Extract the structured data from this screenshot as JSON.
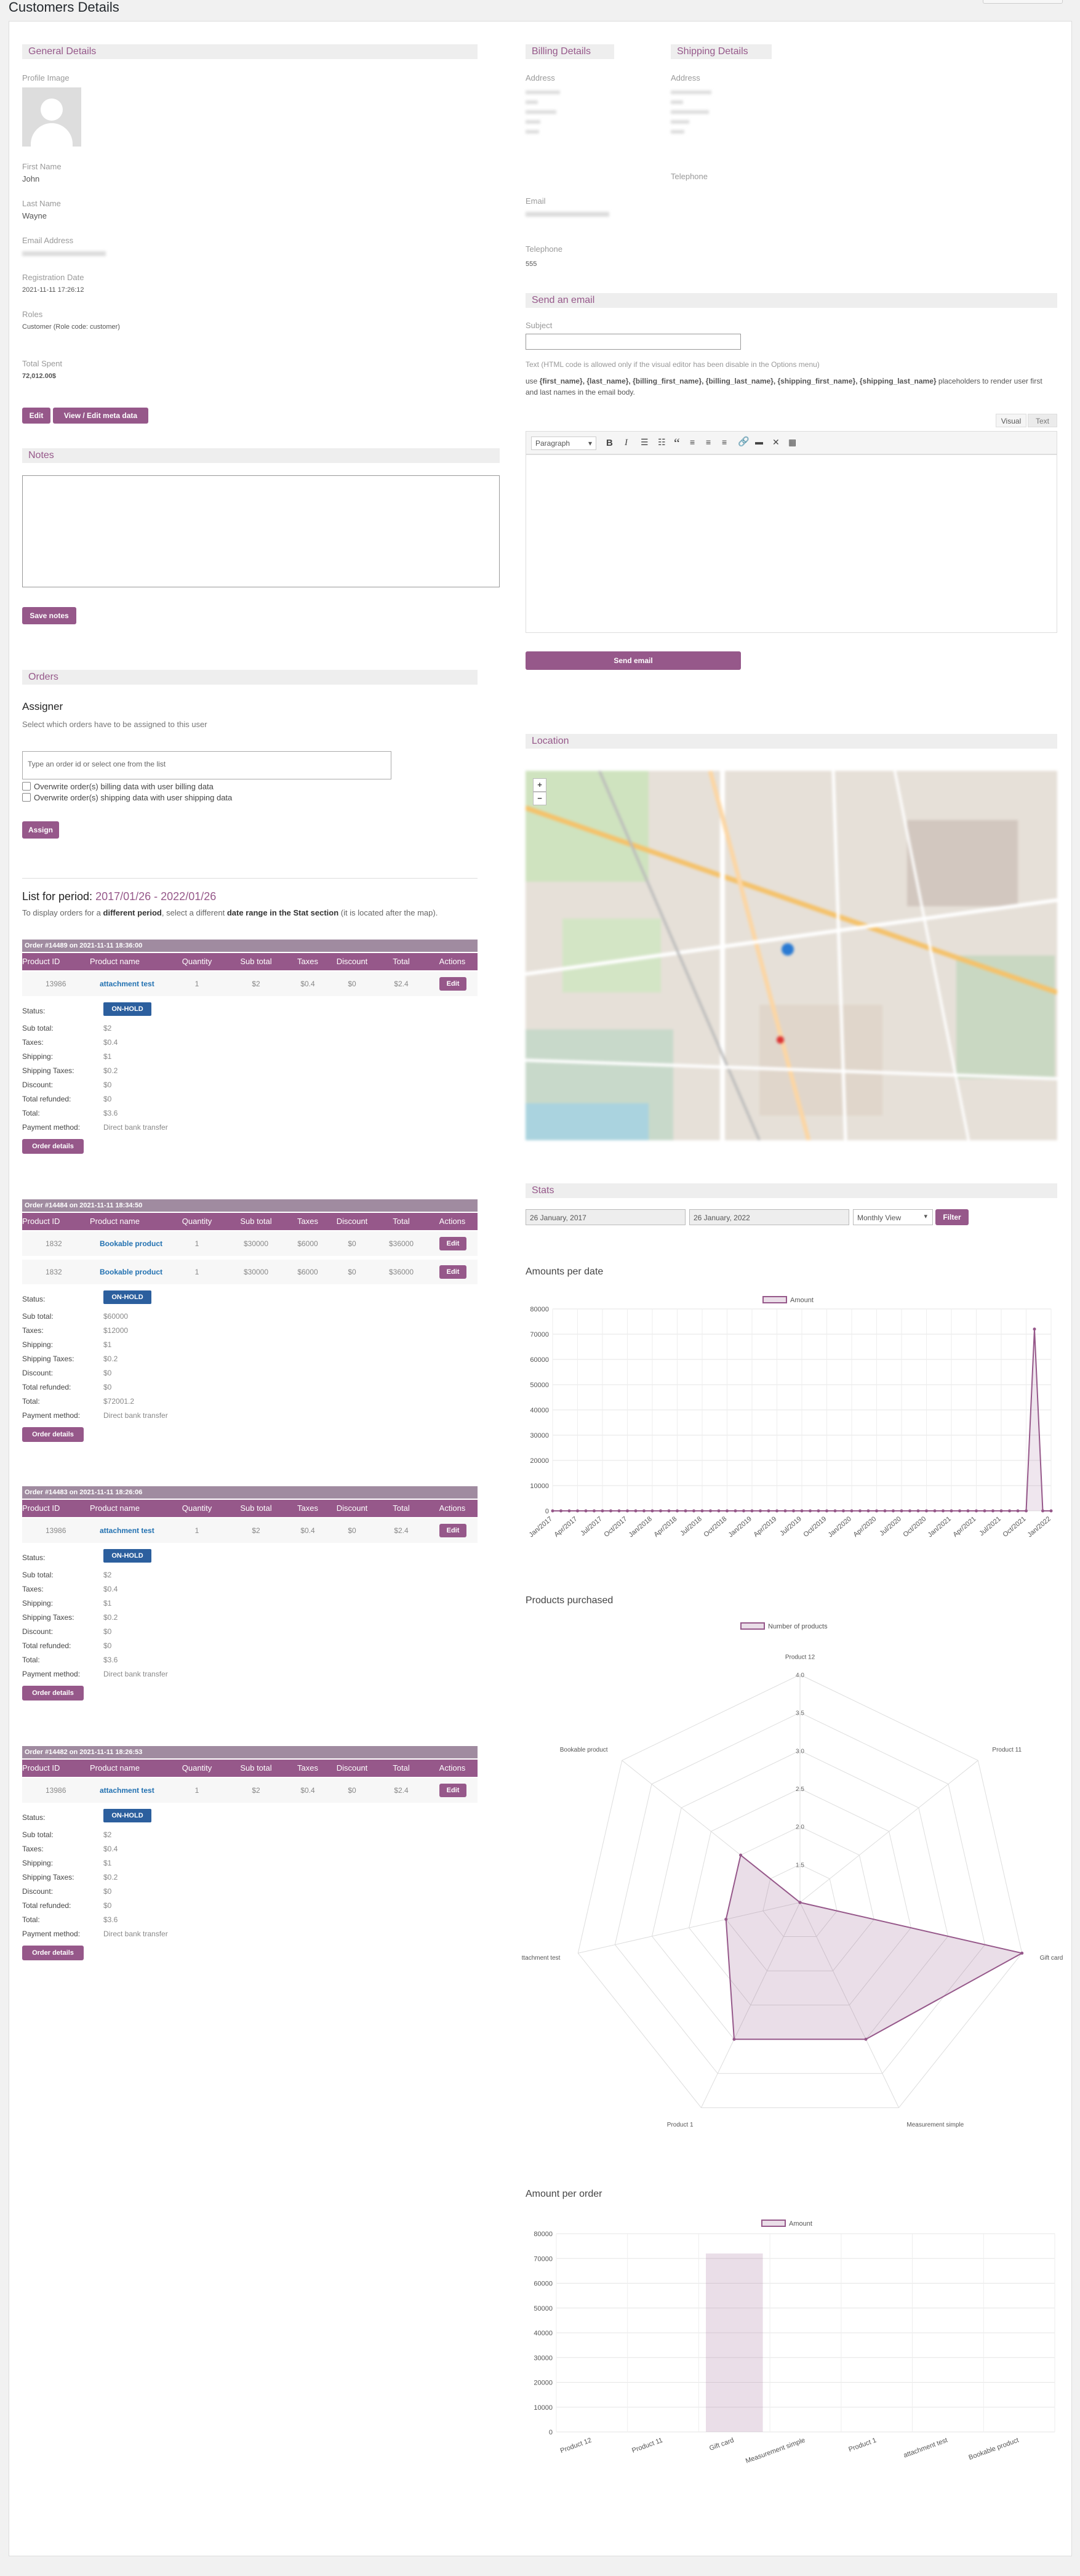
{
  "page_title": "Customers Details",
  "general": {
    "header": "General Details",
    "profile_image_label": "Profile Image",
    "first_name_label": "First Name",
    "first_name": "John",
    "last_name_label": "Last Name",
    "last_name": "Wayne",
    "email_label": "Email Address",
    "reg_date_label": "Registration Date",
    "reg_date": "2021-11-11 17:26:12",
    "roles_label": "Roles",
    "roles": "Customer (Role code: customer)",
    "total_spent_label": "Total Spent",
    "total_spent": "72,012.00$",
    "edit_btn": "Edit",
    "meta_btn": "View / Edit meta data"
  },
  "notes": {
    "header": "Notes",
    "save_btn": "Save notes"
  },
  "billing": {
    "header": "Billing Details",
    "address_label": "Address",
    "email_label": "Email",
    "telephone_label": "Telephone",
    "telephone": "555"
  },
  "shipping": {
    "header": "Shipping Details",
    "address_label": "Address",
    "telephone_label": "Telephone"
  },
  "send_email": {
    "header": "Send an email",
    "subject_label": "Subject",
    "note": "Text (HTML code is allowed only if the visual editor has been disable in the Options menu)",
    "placeholders_pre": "use ",
    "placeholders": "{first_name}, {last_name}, {billing_first_name}, {billing_last_name}, {shipping_first_name}, {shipping_last_name}",
    "placeholders_post": " placeholders to render user first and last names in the email body.",
    "tab_visual": "Visual",
    "tab_text": "Text",
    "format": "Paragraph",
    "send_btn": "Send email"
  },
  "orders": {
    "header": "Orders",
    "assigner_title": "Assigner",
    "assigner_desc": "Select which orders have to be assigned to this user",
    "input_placeholder": "Type an order id or select one from the list",
    "cb1": "Overwrite order(s) billing data with user billing data",
    "cb2": "Overwrite order(s) shipping data with user shipping data",
    "assign_btn": "Assign",
    "period_label": "List for period: ",
    "period_value": "2017/01/26 - 2022/01/26",
    "period_desc_1": "To display orders for a ",
    "period_desc_b1": "different period",
    "period_desc_2": ", select a different ",
    "period_desc_b2": "date range in the Stat section",
    "period_desc_3": " (it is located after the map).",
    "columns": [
      "Product ID",
      "Product name",
      "Quantity",
      "Sub total",
      "Taxes",
      "Discount",
      "Total",
      "Actions"
    ],
    "summary_labels": [
      "Sub total:",
      "Taxes:",
      "Shipping:",
      "Shipping Taxes:",
      "Discount:",
      "Total refunded:",
      "Total:",
      "Payment method:"
    ],
    "status_label": "Status:",
    "edit_label": "Edit",
    "details_btn": "Order details",
    "list": [
      {
        "title": "Order #14489 on 2021-11-11 18:36:00",
        "status": "ON-HOLD",
        "items": [
          {
            "id": "13986",
            "name": "attachment test",
            "qty": "1",
            "sub": "$2",
            "tax": "$0.4",
            "disc": "$0",
            "total": "$2.4"
          }
        ],
        "summary": [
          "$2",
          "$0.4",
          "$1",
          "$0.2",
          "$0",
          "$0",
          "$3.6",
          "Direct bank transfer"
        ]
      },
      {
        "title": "Order #14484 on 2021-11-11 18:34:50",
        "status": "ON-HOLD",
        "items": [
          {
            "id": "1832",
            "name": "Bookable product",
            "qty": "1",
            "sub": "$30000",
            "tax": "$6000",
            "disc": "$0",
            "total": "$36000"
          },
          {
            "id": "1832",
            "name": "Bookable product",
            "qty": "1",
            "sub": "$30000",
            "tax": "$6000",
            "disc": "$0",
            "total": "$36000"
          }
        ],
        "summary": [
          "$60000",
          "$12000",
          "$1",
          "$0.2",
          "$0",
          "$0",
          "$72001.2",
          "Direct bank transfer"
        ]
      },
      {
        "title": "Order #14483 on 2021-11-11 18:26:06",
        "status": "ON-HOLD",
        "items": [
          {
            "id": "13986",
            "name": "attachment test",
            "qty": "1",
            "sub": "$2",
            "tax": "$0.4",
            "disc": "$0",
            "total": "$2.4"
          }
        ],
        "summary": [
          "$2",
          "$0.4",
          "$1",
          "$0.2",
          "$0",
          "$0",
          "$3.6",
          "Direct bank transfer"
        ]
      },
      {
        "title": "Order #14482 on 2021-11-11 18:26:53",
        "status": "ON-HOLD",
        "items": [
          {
            "id": "13986",
            "name": "attachment test",
            "qty": "1",
            "sub": "$2",
            "tax": "$0.4",
            "disc": "$0",
            "total": "$2.4"
          }
        ],
        "summary": [
          "$2",
          "$0.4",
          "$1",
          "$0.2",
          "$0",
          "$0",
          "$3.6",
          "Direct bank transfer"
        ]
      }
    ]
  },
  "location": {
    "header": "Location"
  },
  "stats": {
    "header": "Stats",
    "from": "26 January, 2017",
    "to": "26 January, 2022",
    "view": "Monthly View",
    "filter_btn": "Filter"
  },
  "colors": {
    "accent": "#96588a",
    "status": "#2c5f9e"
  },
  "chart_data": [
    {
      "type": "line",
      "title": "Amounts per date",
      "legend": "Amount",
      "x": [
        "Jan/2017",
        "Feb/2017",
        "Mar/2017",
        "Apr/2017",
        "May/2017",
        "Jun/2017",
        "Jul/2017",
        "Aug/2017",
        "Sep/2017",
        "Oct/2017",
        "Nov/2017",
        "Dec/2017",
        "Jan/2018",
        "Feb/2018",
        "Mar/2018",
        "Apr/2018",
        "May/2018",
        "Jun/2018",
        "Jul/2018",
        "Aug/2018",
        "Sep/2018",
        "Oct/2018",
        "Nov/2018",
        "Dec/2018",
        "Jan/2019",
        "Feb/2019",
        "Mar/2019",
        "Apr/2019",
        "May/2019",
        "Jun/2019",
        "Jul/2019",
        "Aug/2019",
        "Sep/2019",
        "Oct/2019",
        "Nov/2019",
        "Dec/2019",
        "Jan/2020",
        "Feb/2020",
        "Mar/2020",
        "Apr/2020",
        "May/2020",
        "Jun/2020",
        "Jul/2020",
        "Aug/2020",
        "Sep/2020",
        "Oct/2020",
        "Nov/2020",
        "Dec/2020",
        "Jan/2021",
        "Feb/2021",
        "Mar/2021",
        "Apr/2021",
        "May/2021",
        "Jun/2021",
        "Jul/2021",
        "Aug/2021",
        "Sep/2021",
        "Oct/2021",
        "Nov/2021",
        "Dec/2021",
        "Jan/2022"
      ],
      "xticks": [
        "Jan/2017",
        "Apr/2017",
        "Jul/2017",
        "Oct/2017",
        "Jan/2018",
        "Apr/2018",
        "Jul/2018",
        "Oct/2018",
        "Jan/2019",
        "Apr/2019",
        "Jul/2019",
        "Oct/2019",
        "Jan/2020",
        "Apr/2020",
        "Jul/2020",
        "Oct/2020",
        "Jan/2021",
        "Apr/2021",
        "Jul/2021",
        "Oct/2021",
        "Jan/2022"
      ],
      "values": [
        0,
        0,
        0,
        0,
        0,
        0,
        0,
        0,
        0,
        0,
        0,
        0,
        0,
        0,
        0,
        0,
        0,
        0,
        0,
        0,
        0,
        0,
        0,
        0,
        0,
        0,
        0,
        0,
        0,
        0,
        0,
        0,
        0,
        0,
        0,
        0,
        0,
        0,
        0,
        0,
        0,
        0,
        0,
        0,
        0,
        0,
        0,
        0,
        0,
        0,
        0,
        0,
        0,
        0,
        0,
        0,
        0,
        0,
        72012,
        0,
        0
      ],
      "ylim": [
        0,
        80000
      ],
      "yticks": [
        0,
        10000,
        20000,
        30000,
        40000,
        50000,
        60000,
        70000,
        80000
      ],
      "grid": true,
      "legend_position": "top"
    },
    {
      "type": "radar",
      "title": "Products purchased",
      "legend": "Number of products",
      "categories": [
        "Product 12",
        "Product 11",
        "Gift card",
        "Measurement simple",
        "Product 1",
        "attachment test",
        "Bookable product"
      ],
      "values": [
        1,
        1,
        4,
        3,
        3,
        2,
        2
      ],
      "rlim": [
        1,
        4
      ],
      "rticks": [
        "1.5",
        "2.0",
        "2.5",
        "3.0",
        "3.5",
        "4.0"
      ]
    },
    {
      "type": "bar",
      "title": "Amount per order",
      "legend": "Amount",
      "categories": [
        "Product 12",
        "Product 11",
        "Gift card",
        "Measurement simple",
        "Product 1",
        "attachment test",
        "Bookable product"
      ],
      "values": [
        0,
        0,
        72000,
        0,
        0,
        0,
        0
      ],
      "ylim": [
        0,
        80000
      ],
      "yticks": [
        0,
        10000,
        20000,
        30000,
        40000,
        50000,
        60000,
        70000,
        80000
      ],
      "grid": true,
      "legend_position": "top"
    }
  ]
}
